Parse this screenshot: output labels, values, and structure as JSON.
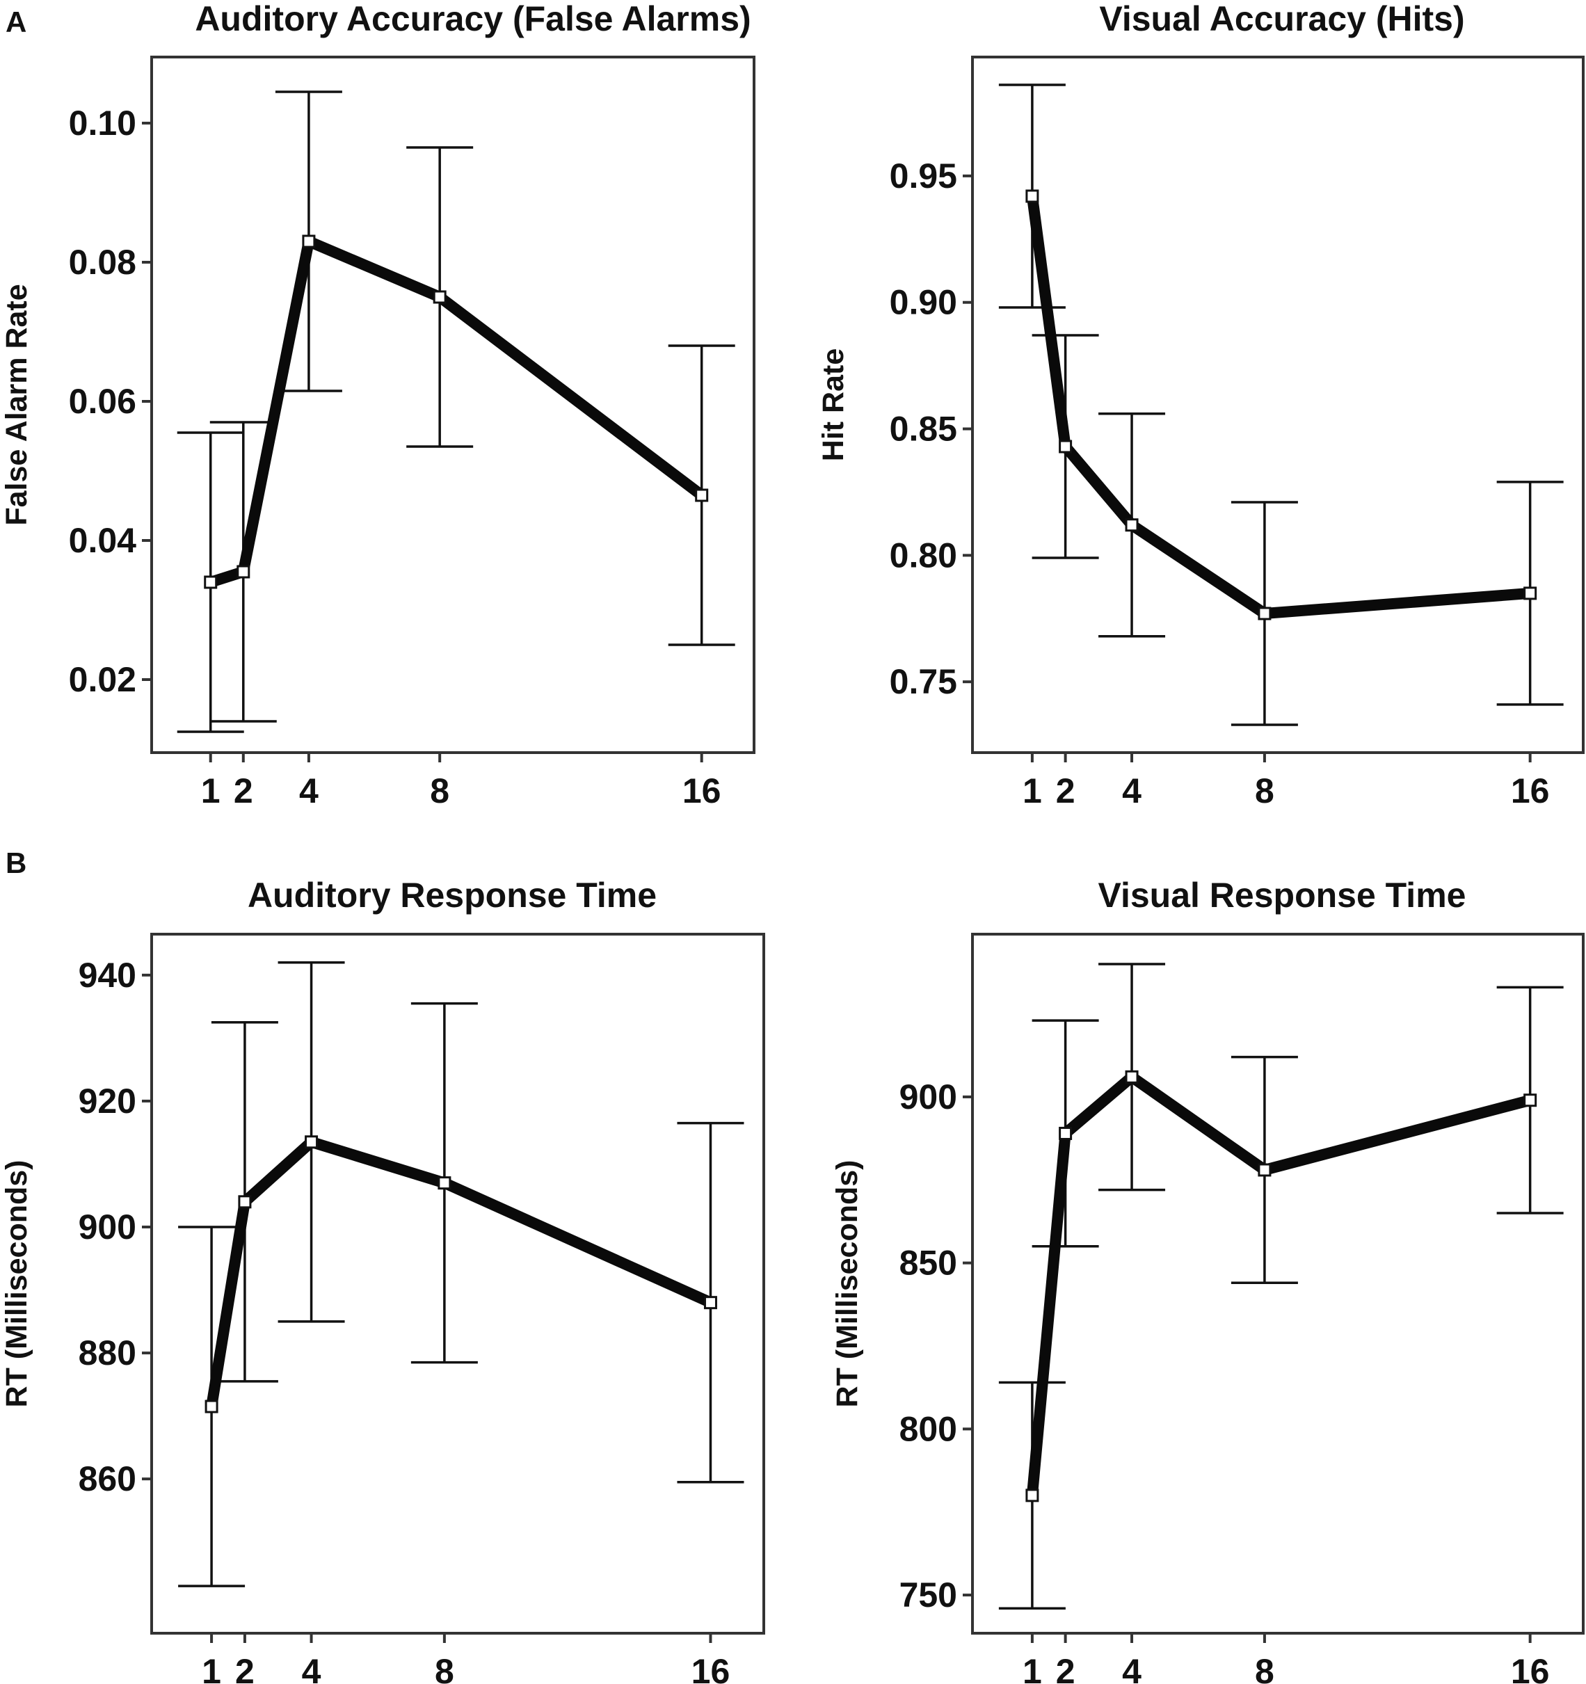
{
  "panel_labels": [
    "A",
    "B"
  ],
  "chart_data": [
    {
      "type": "line",
      "title": "Auditory Accuracy (False Alarms)",
      "xlabel": "",
      "ylabel": "False Alarm Rate",
      "x": [
        1,
        2,
        4,
        8,
        16
      ],
      "x_tick_labels": [
        "1",
        "2",
        "4",
        "8",
        "16"
      ],
      "series": [
        {
          "name": "False Alarm Rate",
          "values": [
            0.034,
            0.0355,
            0.083,
            0.075,
            0.0465
          ],
          "error_low": [
            0.0125,
            0.014,
            0.0615,
            0.0535,
            0.025
          ],
          "error_high": [
            0.0555,
            0.057,
            0.1045,
            0.0965,
            0.068
          ]
        }
      ],
      "y_ticks": [
        0.02,
        0.04,
        0.06,
        0.08,
        0.1
      ],
      "y_tick_labels": [
        "0.02",
        "0.04",
        "0.06",
        "0.08",
        "0.10"
      ],
      "xlim": [
        -0.8,
        17.6
      ],
      "ylim": [
        0.0095,
        0.1095
      ],
      "grid": false
    },
    {
      "type": "line",
      "title": "Visual Accuracy (Hits)",
      "xlabel": "",
      "ylabel": "Hit Rate",
      "x": [
        1,
        2,
        4,
        8,
        16
      ],
      "x_tick_labels": [
        "1",
        "2",
        "4",
        "8",
        "16"
      ],
      "series": [
        {
          "name": "Hit Rate",
          "values": [
            0.942,
            0.843,
            0.812,
            0.777,
            0.785
          ],
          "error_low": [
            0.898,
            0.799,
            0.768,
            0.733,
            0.741
          ],
          "error_high": [
            0.986,
            0.887,
            0.856,
            0.821,
            0.829
          ]
        }
      ],
      "y_ticks": [
        0.75,
        0.8,
        0.85,
        0.9,
        0.95
      ],
      "y_tick_labels": [
        "0.75",
        "0.80",
        "0.85",
        "0.90",
        "0.95"
      ],
      "xlim": [
        -0.8,
        17.6
      ],
      "ylim": [
        0.722,
        0.997
      ],
      "grid": false
    },
    {
      "type": "line",
      "title": "Auditory Response Time",
      "xlabel": "",
      "ylabel": "RT (Milliseconds)",
      "x": [
        1,
        2,
        4,
        8,
        16
      ],
      "x_tick_labels": [
        "1",
        "2",
        "4",
        "8",
        "16"
      ],
      "series": [
        {
          "name": "RT (Milliseconds)",
          "values": [
            871.5,
            904,
            913.5,
            907,
            888
          ],
          "error_low": [
            843,
            875.5,
            885,
            878.5,
            859.5
          ],
          "error_high": [
            900,
            932.5,
            942,
            935.5,
            916.5
          ]
        }
      ],
      "y_ticks": [
        860,
        880,
        900,
        920,
        940
      ],
      "y_tick_labels": [
        "860",
        "880",
        "900",
        "920",
        "940"
      ],
      "xlim": [
        -0.8,
        17.6
      ],
      "ylim": [
        835.5,
        946.5
      ],
      "grid": false
    },
    {
      "type": "line",
      "title": "Visual Response Time",
      "xlabel": "",
      "ylabel": "RT (Milliseconds)",
      "x": [
        1,
        2,
        4,
        8,
        16
      ],
      "x_tick_labels": [
        "1",
        "2",
        "4",
        "8",
        "16"
      ],
      "series": [
        {
          "name": "RT (Milliseconds)",
          "values": [
            780,
            889,
            906,
            878,
            899
          ],
          "error_low": [
            746,
            855,
            872,
            844,
            865
          ],
          "error_high": [
            814,
            923,
            940,
            912,
            933
          ]
        }
      ],
      "y_ticks": [
        750,
        800,
        850,
        900
      ],
      "y_tick_labels": [
        "750",
        "800",
        "850",
        "900"
      ],
      "xlim": [
        -0.8,
        17.6
      ],
      "ylim": [
        738.5,
        949
      ],
      "grid": false
    }
  ]
}
